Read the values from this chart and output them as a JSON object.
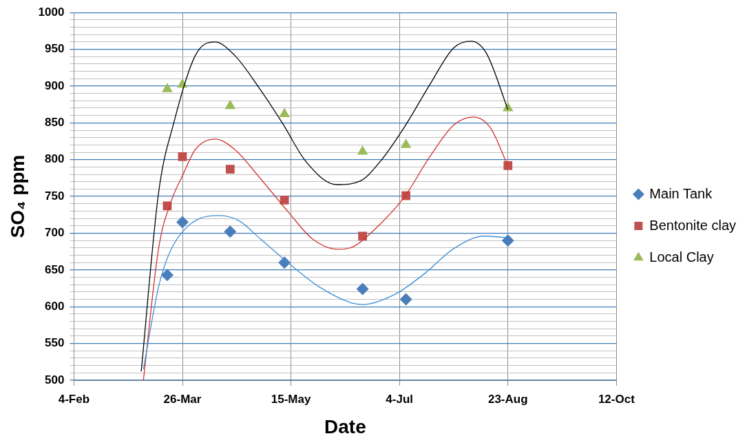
{
  "chart_data": {
    "type": "scatter",
    "xlabel": "Date",
    "ylabel": "SO₄ ppm",
    "x": [
      "--03-19",
      "--03-26",
      "--04-17",
      "--05-12",
      "--06-17",
      "--07-07",
      "--08-23"
    ],
    "series": [
      {
        "name": "Main Tank",
        "color": "#4a7ebb",
        "marker": "diamond",
        "values": [
          643,
          715,
          702,
          660,
          624,
          610,
          690
        ]
      },
      {
        "name": "Bentonite clay",
        "color": "#c0504d",
        "marker": "square",
        "values": [
          737,
          804,
          787,
          745,
          696,
          751,
          792
        ]
      },
      {
        "name": "Local Clay",
        "color": "#9bbb59",
        "marker": "triangle",
        "values": [
          896,
          902,
          873,
          862,
          811,
          820,
          870
        ]
      },
      {
        "type": "line",
        "color": "#3b8fd6",
        "marker": "none",
        "x": [
          "--03-08",
          "--03-15",
          "--03-20",
          "--03-27",
          "--04-03",
          "--04-12",
          "--04-21",
          "--05-01",
          "--05-14",
          "--05-28",
          "--06-12",
          "--06-17",
          "--07-02",
          "--07-16",
          "--07-29",
          "--08-12",
          "--08-22"
        ],
        "values": [
          515,
          627,
          673,
          705,
          720,
          724,
          717,
          692,
          659,
          627,
          605,
          603,
          617,
          646,
          679,
          696,
          694
        ]
      },
      {
        "type": "line",
        "color": "#d0312d",
        "marker": "none",
        "x": [
          "--03-08",
          "--03-15",
          "--03-21",
          "--03-26",
          "--04-01",
          "--04-10",
          "--04-19",
          "--05-01",
          "--05-14",
          "--05-25",
          "--06-06",
          "--06-13",
          "--06-25",
          "--07-06",
          "--07-18",
          "--07-29",
          "--08-07",
          "--08-15",
          "--08-23"
        ],
        "values": [
          500,
          679,
          745,
          778,
          814,
          828,
          814,
          774,
          728,
          692,
          678,
          682,
          712,
          748,
          804,
          847,
          858,
          843,
          791
        ]
      },
      {
        "type": "line",
        "color": "#000000",
        "marker": "none",
        "x": [
          "--03-07",
          "--03-15",
          "--03-22",
          "--04-01",
          "--04-10",
          "--04-19",
          "--04-30",
          "--05-11",
          "--05-22",
          "--06-05",
          "--06-16",
          "--06-25",
          "--07-06",
          "--07-18",
          "--07-29",
          "--08-06",
          "--08-13",
          "--08-23"
        ],
        "values": [
          512,
          755,
          850,
          942,
          960,
          942,
          899,
          850,
          797,
          766,
          771,
          797,
          843,
          902,
          952,
          961,
          945,
          868
        ]
      }
    ],
    "xlim": [
      "--02-04",
      "--10-12"
    ],
    "xticks": [
      {
        "value": "--02-04",
        "label": "4-Feb"
      },
      {
        "value": "--03-26",
        "label": "26-Mar"
      },
      {
        "value": "--05-15",
        "label": "15-May"
      },
      {
        "value": "--07-04",
        "label": "4-Jul"
      },
      {
        "value": "--08-23",
        "label": "23-Aug"
      },
      {
        "value": "--10-12",
        "label": "12-Oct"
      }
    ],
    "ylim": [
      500,
      1000
    ],
    "yticks": [
      500,
      {
        "value": 510,
        "label": null
      },
      {
        "value": 520,
        "label": null
      },
      {
        "value": 530,
        "label": null
      },
      {
        "value": 540,
        "label": null
      },
      550,
      {
        "value": 560,
        "label": null
      },
      {
        "value": 570,
        "label": null
      },
      {
        "value": 580,
        "label": null
      },
      {
        "value": 590,
        "label": null
      },
      600,
      {
        "value": 610,
        "label": null
      },
      {
        "value": 620,
        "label": null
      },
      {
        "value": 630,
        "label": null
      },
      {
        "value": 640,
        "label": null
      },
      650,
      {
        "value": 660,
        "label": null
      },
      {
        "value": 670,
        "label": null
      },
      {
        "value": 680,
        "label": null
      },
      {
        "value": 690,
        "label": null
      },
      700,
      {
        "value": 710,
        "label": null
      },
      {
        "value": 720,
        "label": null
      },
      {
        "value": 730,
        "label": null
      },
      {
        "value": 740,
        "label": null
      },
      750,
      {
        "value": 760,
        "label": null
      },
      {
        "value": 770,
        "label": null
      },
      {
        "value": 780,
        "label": null
      },
      {
        "value": 790,
        "label": null
      },
      800,
      {
        "value": 810,
        "label": null
      },
      {
        "value": 820,
        "label": null
      },
      {
        "value": 830,
        "label": null
      },
      {
        "value": 840,
        "label": null
      },
      850,
      {
        "value": 860,
        "label": null
      },
      {
        "value": 870,
        "label": null
      },
      {
        "value": 880,
        "label": null
      },
      {
        "value": 890,
        "label": null
      },
      900,
      {
        "value": 910,
        "label": null
      },
      {
        "value": 920,
        "label": null
      },
      {
        "value": 930,
        "label": null
      },
      {
        "value": 940,
        "label": null
      },
      950,
      {
        "value": 960,
        "label": null
      },
      {
        "value": 970,
        "label": null
      },
      {
        "value": 980,
        "label": null
      },
      {
        "value": 990,
        "label": null
      },
      1000
    ],
    "grid": true,
    "legend": "right"
  }
}
